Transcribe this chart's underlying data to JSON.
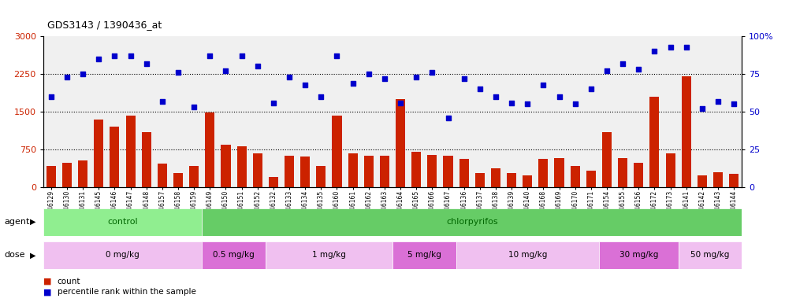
{
  "title": "GDS3143 / 1390436_at",
  "samples": [
    "GSM246129",
    "GSM246130",
    "GSM246131",
    "GSM246145",
    "GSM246146",
    "GSM246147",
    "GSM246148",
    "GSM246157",
    "GSM246158",
    "GSM246159",
    "GSM246149",
    "GSM246150",
    "GSM246151",
    "GSM246152",
    "GSM246132",
    "GSM246133",
    "GSM246134",
    "GSM246135",
    "GSM246160",
    "GSM246161",
    "GSM246162",
    "GSM246163",
    "GSM246164",
    "GSM246165",
    "GSM246166",
    "GSM246167",
    "GSM246136",
    "GSM246137",
    "GSM246138",
    "GSM246139",
    "GSM246140",
    "GSM246168",
    "GSM246169",
    "GSM246170",
    "GSM246171",
    "GSM246154",
    "GSM246155",
    "GSM246156",
    "GSM246172",
    "GSM246173",
    "GSM246141",
    "GSM246142",
    "GSM246143",
    "GSM246144"
  ],
  "counts": [
    430,
    490,
    530,
    1350,
    1200,
    1420,
    1100,
    470,
    290,
    430,
    1480,
    840,
    820,
    670,
    200,
    620,
    610,
    430,
    1430,
    670,
    630,
    620,
    1750,
    700,
    640,
    620,
    560,
    290,
    370,
    290,
    230,
    560,
    580,
    420,
    330,
    1100,
    580,
    480,
    1800,
    680,
    2200,
    230,
    300,
    260
  ],
  "percentiles": [
    60,
    73,
    75,
    85,
    87,
    87,
    82,
    57,
    76,
    53,
    87,
    77,
    87,
    80,
    56,
    73,
    68,
    60,
    87,
    69,
    75,
    72,
    56,
    73,
    76,
    46,
    72,
    65,
    60,
    56,
    55,
    68,
    60,
    55,
    65,
    77,
    82,
    78,
    90,
    93,
    93,
    52,
    57,
    55
  ],
  "bar_color": "#cc2200",
  "dot_color": "#0000cc",
  "ylim_left": [
    0,
    3000
  ],
  "ylim_right": [
    0,
    100
  ],
  "yticks_left": [
    0,
    750,
    1500,
    2250,
    3000
  ],
  "yticks_right": [
    0,
    25,
    50,
    75,
    100
  ],
  "agent_groups": [
    {
      "label": "control",
      "start": 0,
      "end": 9,
      "color": "#90ee90"
    },
    {
      "label": "chlorpyrifos",
      "start": 10,
      "end": 43,
      "color": "#66cc66"
    }
  ],
  "dose_groups": [
    {
      "label": "0 mg/kg",
      "start": 0,
      "end": 9,
      "color": "#f0c0f0"
    },
    {
      "label": "0.5 mg/kg",
      "start": 10,
      "end": 13,
      "color": "#da70d6"
    },
    {
      "label": "1 mg/kg",
      "start": 14,
      "end": 21,
      "color": "#f0c0f0"
    },
    {
      "label": "5 mg/kg",
      "start": 22,
      "end": 25,
      "color": "#da70d6"
    },
    {
      "label": "10 mg/kg",
      "start": 26,
      "end": 34,
      "color": "#f0c0f0"
    },
    {
      "label": "30 mg/kg",
      "start": 35,
      "end": 39,
      "color": "#da70d6"
    },
    {
      "label": "50 mg/kg",
      "start": 40,
      "end": 43,
      "color": "#f0c0f0"
    }
  ],
  "legend_items": [
    {
      "label": "count",
      "color": "#cc2200"
    },
    {
      "label": "percentile rank within the sample",
      "color": "#0000cc"
    }
  ]
}
